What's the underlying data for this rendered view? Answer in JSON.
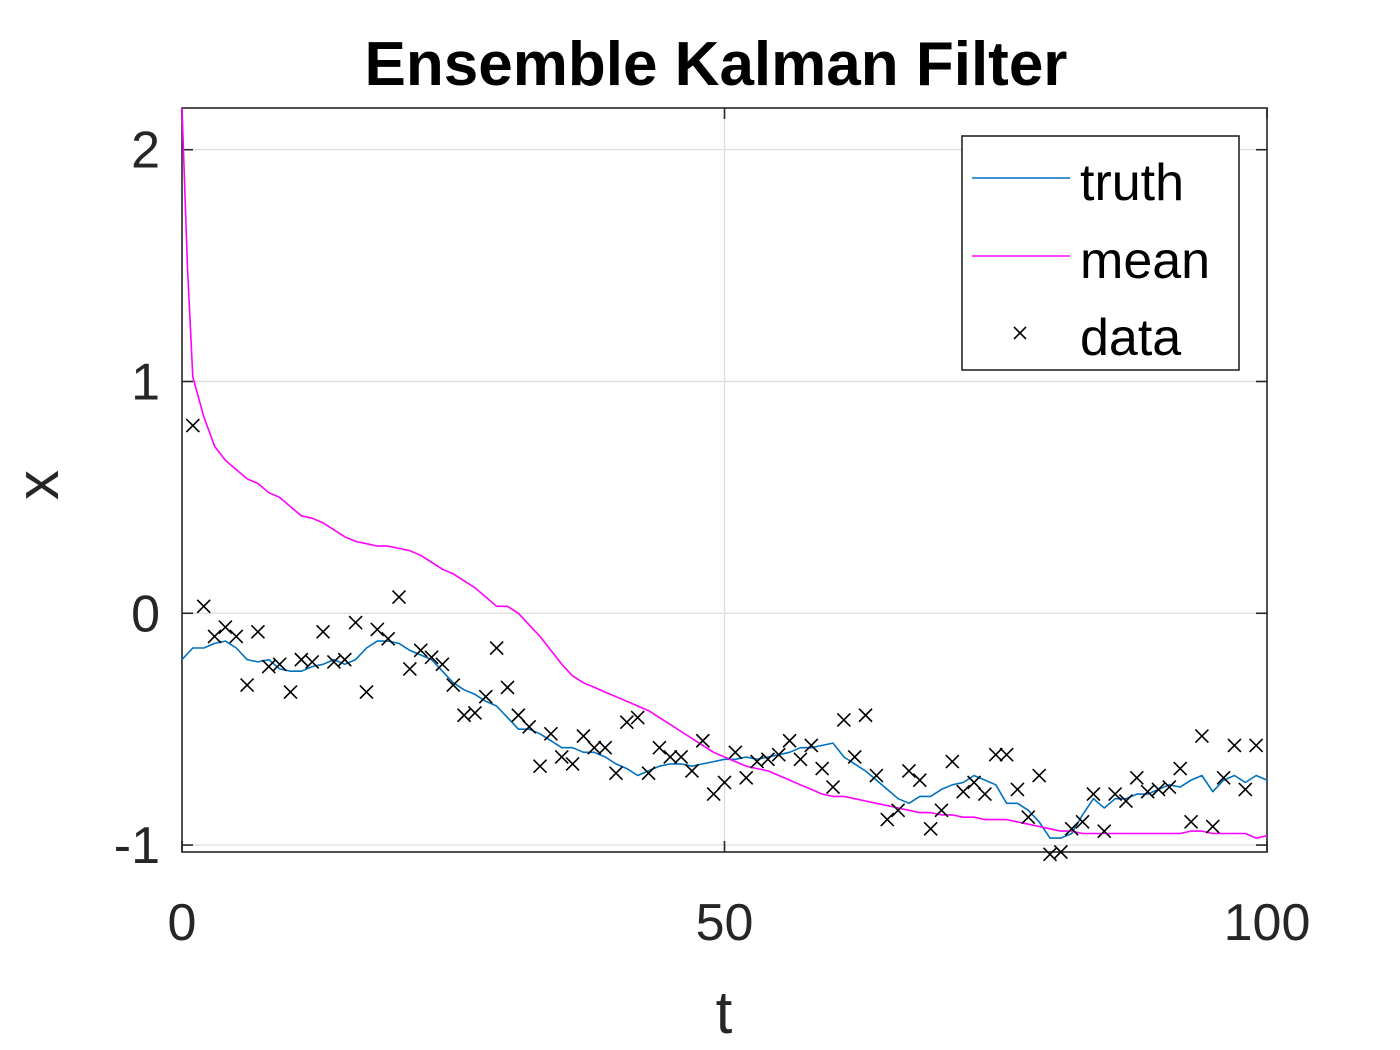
{
  "chart_data": {
    "type": "line",
    "title": "Ensemble Kalman Filter",
    "xlabel": "t",
    "ylabel": "x",
    "xlim": [
      0,
      100
    ],
    "ylim": [
      -1.03,
      2.18
    ],
    "xticks": [
      0,
      50,
      100
    ],
    "xtick_labels": [
      "0",
      "50",
      "100"
    ],
    "yticks": [
      -1,
      0,
      1,
      2
    ],
    "ytick_labels": [
      "-1",
      "0",
      "1",
      "2"
    ],
    "grid": true,
    "legend_position": "top-right",
    "series": [
      {
        "name": "truth",
        "kind": "line",
        "color": "#0072BD",
        "points": [
          [
            0,
            -0.2
          ],
          [
            1,
            -0.15
          ],
          [
            2,
            -0.15
          ],
          [
            3,
            -0.13
          ],
          [
            4,
            -0.12
          ],
          [
            5,
            -0.15
          ],
          [
            6,
            -0.2
          ],
          [
            7,
            -0.21
          ],
          [
            8,
            -0.2
          ],
          [
            9,
            -0.24
          ],
          [
            10,
            -0.25
          ],
          [
            11,
            -0.25
          ],
          [
            12,
            -0.23
          ],
          [
            13,
            -0.22
          ],
          [
            14,
            -0.2
          ],
          [
            15,
            -0.22
          ],
          [
            16,
            -0.2
          ],
          [
            17,
            -0.15
          ],
          [
            18,
            -0.12
          ],
          [
            19,
            -0.12
          ],
          [
            20,
            -0.13
          ],
          [
            21,
            -0.16
          ],
          [
            22,
            -0.18
          ],
          [
            23,
            -0.2
          ],
          [
            24,
            -0.25
          ],
          [
            25,
            -0.3
          ],
          [
            26,
            -0.33
          ],
          [
            27,
            -0.35
          ],
          [
            28,
            -0.38
          ],
          [
            29,
            -0.4
          ],
          [
            30,
            -0.45
          ],
          [
            31,
            -0.5
          ],
          [
            32,
            -0.5
          ],
          [
            33,
            -0.52
          ],
          [
            34,
            -0.55
          ],
          [
            35,
            -0.58
          ],
          [
            36,
            -0.58
          ],
          [
            37,
            -0.6
          ],
          [
            38,
            -0.6
          ],
          [
            39,
            -0.62
          ],
          [
            40,
            -0.65
          ],
          [
            41,
            -0.67
          ],
          [
            42,
            -0.7
          ],
          [
            43,
            -0.68
          ],
          [
            44,
            -0.66
          ],
          [
            45,
            -0.65
          ],
          [
            46,
            -0.65
          ],
          [
            47,
            -0.66
          ],
          [
            48,
            -0.65
          ],
          [
            49,
            -0.64
          ],
          [
            50,
            -0.63
          ],
          [
            51,
            -0.63
          ],
          [
            52,
            -0.62
          ],
          [
            53,
            -0.63
          ],
          [
            54,
            -0.62
          ],
          [
            55,
            -0.61
          ],
          [
            56,
            -0.6
          ],
          [
            57,
            -0.58
          ],
          [
            58,
            -0.58
          ],
          [
            59,
            -0.57
          ],
          [
            60,
            -0.56
          ],
          [
            61,
            -0.62
          ],
          [
            62,
            -0.65
          ],
          [
            63,
            -0.68
          ],
          [
            64,
            -0.72
          ],
          [
            65,
            -0.76
          ],
          [
            66,
            -0.8
          ],
          [
            67,
            -0.82
          ],
          [
            68,
            -0.79
          ],
          [
            69,
            -0.79
          ],
          [
            70,
            -0.76
          ],
          [
            71,
            -0.74
          ],
          [
            72,
            -0.73
          ],
          [
            73,
            -0.7
          ],
          [
            74,
            -0.72
          ],
          [
            75,
            -0.74
          ],
          [
            76,
            -0.82
          ],
          [
            77,
            -0.82
          ],
          [
            78,
            -0.85
          ],
          [
            79,
            -0.9
          ],
          [
            80,
            -0.97
          ],
          [
            81,
            -0.97
          ],
          [
            82,
            -0.95
          ],
          [
            83,
            -0.87
          ],
          [
            84,
            -0.8
          ],
          [
            85,
            -0.84
          ],
          [
            86,
            -0.8
          ],
          [
            87,
            -0.8
          ],
          [
            88,
            -0.78
          ],
          [
            89,
            -0.78
          ],
          [
            90,
            -0.76
          ],
          [
            91,
            -0.74
          ],
          [
            92,
            -0.75
          ],
          [
            93,
            -0.72
          ],
          [
            94,
            -0.7
          ],
          [
            95,
            -0.77
          ],
          [
            96,
            -0.72
          ],
          [
            97,
            -0.7
          ],
          [
            98,
            -0.73
          ],
          [
            99,
            -0.7
          ],
          [
            100,
            -0.72
          ]
        ]
      },
      {
        "name": "mean",
        "kind": "line",
        "color": "#FF00FF",
        "points": [
          [
            0,
            2.18
          ],
          [
            0.5,
            1.5
          ],
          [
            1,
            1.02
          ],
          [
            2,
            0.85
          ],
          [
            3,
            0.72
          ],
          [
            4,
            0.66
          ],
          [
            5,
            0.62
          ],
          [
            6,
            0.58
          ],
          [
            7,
            0.56
          ],
          [
            8,
            0.52
          ],
          [
            9,
            0.5
          ],
          [
            10,
            0.46
          ],
          [
            11,
            0.42
          ],
          [
            12,
            0.41
          ],
          [
            13,
            0.39
          ],
          [
            14,
            0.36
          ],
          [
            15,
            0.33
          ],
          [
            16,
            0.31
          ],
          [
            17,
            0.3
          ],
          [
            18,
            0.29
          ],
          [
            19,
            0.29
          ],
          [
            20,
            0.28
          ],
          [
            21,
            0.27
          ],
          [
            22,
            0.25
          ],
          [
            23,
            0.22
          ],
          [
            24,
            0.19
          ],
          [
            25,
            0.17
          ],
          [
            26,
            0.14
          ],
          [
            27,
            0.11
          ],
          [
            28,
            0.07
          ],
          [
            29,
            0.03
          ],
          [
            30,
            0.03
          ],
          [
            31,
            0.0
          ],
          [
            32,
            -0.05
          ],
          [
            33,
            -0.1
          ],
          [
            34,
            -0.16
          ],
          [
            35,
            -0.22
          ],
          [
            36,
            -0.27
          ],
          [
            37,
            -0.3
          ],
          [
            38,
            -0.32
          ],
          [
            39,
            -0.34
          ],
          [
            40,
            -0.36
          ],
          [
            41,
            -0.38
          ],
          [
            42,
            -0.4
          ],
          [
            43,
            -0.42
          ],
          [
            44,
            -0.45
          ],
          [
            45,
            -0.48
          ],
          [
            46,
            -0.51
          ],
          [
            47,
            -0.54
          ],
          [
            48,
            -0.57
          ],
          [
            49,
            -0.6
          ],
          [
            50,
            -0.62
          ],
          [
            51,
            -0.64
          ],
          [
            52,
            -0.66
          ],
          [
            53,
            -0.67
          ],
          [
            54,
            -0.68
          ],
          [
            55,
            -0.7
          ],
          [
            56,
            -0.72
          ],
          [
            57,
            -0.74
          ],
          [
            58,
            -0.76
          ],
          [
            59,
            -0.78
          ],
          [
            60,
            -0.79
          ],
          [
            61,
            -0.79
          ],
          [
            62,
            -0.8
          ],
          [
            63,
            -0.81
          ],
          [
            64,
            -0.82
          ],
          [
            65,
            -0.83
          ],
          [
            66,
            -0.84
          ],
          [
            67,
            -0.85
          ],
          [
            68,
            -0.86
          ],
          [
            69,
            -0.86
          ],
          [
            70,
            -0.87
          ],
          [
            71,
            -0.87
          ],
          [
            72,
            -0.88
          ],
          [
            73,
            -0.88
          ],
          [
            74,
            -0.89
          ],
          [
            75,
            -0.89
          ],
          [
            76,
            -0.89
          ],
          [
            77,
            -0.9
          ],
          [
            78,
            -0.91
          ],
          [
            79,
            -0.92
          ],
          [
            80,
            -0.93
          ],
          [
            81,
            -0.94
          ],
          [
            82,
            -0.94
          ],
          [
            83,
            -0.95
          ],
          [
            84,
            -0.95
          ],
          [
            85,
            -0.95
          ],
          [
            86,
            -0.95
          ],
          [
            87,
            -0.95
          ],
          [
            88,
            -0.95
          ],
          [
            89,
            -0.95
          ],
          [
            90,
            -0.95
          ],
          [
            91,
            -0.95
          ],
          [
            92,
            -0.95
          ],
          [
            93,
            -0.94
          ],
          [
            94,
            -0.94
          ],
          [
            95,
            -0.95
          ],
          [
            96,
            -0.95
          ],
          [
            97,
            -0.95
          ],
          [
            98,
            -0.95
          ],
          [
            99,
            -0.97
          ],
          [
            100,
            -0.96
          ]
        ]
      },
      {
        "name": "data",
        "kind": "scatter",
        "marker": "x",
        "color": "#000000",
        "points": [
          [
            1,
            0.81
          ],
          [
            2,
            0.03
          ],
          [
            3,
            -0.1
          ],
          [
            4,
            -0.06
          ],
          [
            5,
            -0.1
          ],
          [
            6,
            -0.31
          ],
          [
            7,
            -0.08
          ],
          [
            8,
            -0.23
          ],
          [
            9,
            -0.22
          ],
          [
            10,
            -0.34
          ],
          [
            11,
            -0.2
          ],
          [
            12,
            -0.21
          ],
          [
            13,
            -0.08
          ],
          [
            14,
            -0.21
          ],
          [
            15,
            -0.2
          ],
          [
            16,
            -0.04
          ],
          [
            17,
            -0.34
          ],
          [
            18,
            -0.07
          ],
          [
            19,
            -0.11
          ],
          [
            20,
            0.07
          ],
          [
            21,
            -0.24
          ],
          [
            22,
            -0.16
          ],
          [
            23,
            -0.19
          ],
          [
            24,
            -0.22
          ],
          [
            25,
            -0.31
          ],
          [
            26,
            -0.44
          ],
          [
            27,
            -0.43
          ],
          [
            28,
            -0.36
          ],
          [
            29,
            -0.15
          ],
          [
            30,
            -0.32
          ],
          [
            31,
            -0.44
          ],
          [
            32,
            -0.49
          ],
          [
            33,
            -0.66
          ],
          [
            34,
            -0.52
          ],
          [
            35,
            -0.62
          ],
          [
            36,
            -0.65
          ],
          [
            37,
            -0.53
          ],
          [
            38,
            -0.58
          ],
          [
            39,
            -0.58
          ],
          [
            40,
            -0.69
          ],
          [
            41,
            -0.47
          ],
          [
            42,
            -0.45
          ],
          [
            43,
            -0.69
          ],
          [
            44,
            -0.58
          ],
          [
            45,
            -0.62
          ],
          [
            46,
            -0.62
          ],
          [
            47,
            -0.68
          ],
          [
            48,
            -0.55
          ],
          [
            49,
            -0.78
          ],
          [
            50,
            -0.73
          ],
          [
            51,
            -0.6
          ],
          [
            52,
            -0.71
          ],
          [
            53,
            -0.64
          ],
          [
            54,
            -0.63
          ],
          [
            55,
            -0.61
          ],
          [
            56,
            -0.55
          ],
          [
            57,
            -0.63
          ],
          [
            58,
            -0.57
          ],
          [
            59,
            -0.67
          ],
          [
            60,
            -0.75
          ],
          [
            61,
            -0.46
          ],
          [
            62,
            -0.62
          ],
          [
            63,
            -0.44
          ],
          [
            64,
            -0.7
          ],
          [
            65,
            -0.89
          ],
          [
            66,
            -0.85
          ],
          [
            67,
            -0.68
          ],
          [
            68,
            -0.72
          ],
          [
            69,
            -0.93
          ],
          [
            70,
            -0.85
          ],
          [
            71,
            -0.64
          ],
          [
            72,
            -0.77
          ],
          [
            73,
            -0.73
          ],
          [
            74,
            -0.78
          ],
          [
            75,
            -0.61
          ],
          [
            76,
            -0.61
          ],
          [
            77,
            -0.76
          ],
          [
            78,
            -0.88
          ],
          [
            79,
            -0.7
          ],
          [
            80,
            -1.04
          ],
          [
            81,
            -1.03
          ],
          [
            82,
            -0.93
          ],
          [
            83,
            -0.9
          ],
          [
            84,
            -0.78
          ],
          [
            85,
            -0.94
          ],
          [
            86,
            -0.78
          ],
          [
            87,
            -0.81
          ],
          [
            88,
            -0.71
          ],
          [
            89,
            -0.77
          ],
          [
            90,
            -0.76
          ],
          [
            91,
            -0.75
          ],
          [
            92,
            -0.67
          ],
          [
            93,
            -0.9
          ],
          [
            94,
            -0.53
          ],
          [
            95,
            -0.92
          ],
          [
            96,
            -0.71
          ],
          [
            97,
            -0.57
          ],
          [
            98,
            -0.76
          ],
          [
            99,
            -0.57
          ]
        ]
      }
    ]
  }
}
